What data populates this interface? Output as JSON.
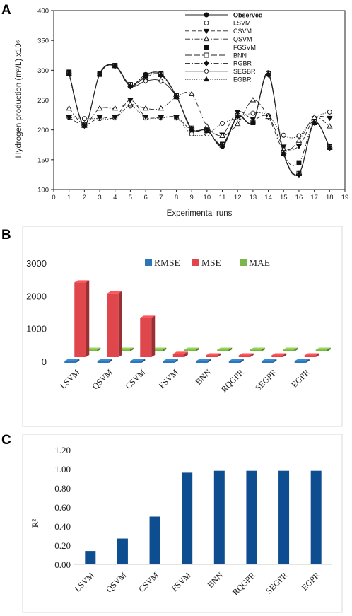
{
  "panels": {
    "a": {
      "letter": "A"
    },
    "b": {
      "letter": "B"
    },
    "c": {
      "letter": "C"
    }
  },
  "chart_data": [
    {
      "type": "line",
      "title": "",
      "xlabel": "Experimental runs",
      "ylabel": "Hydrogen production (m³/L) x10⁶",
      "xlim": [
        0,
        19
      ],
      "ylim": [
        100,
        400
      ],
      "x_ticks": [
        0,
        1,
        2,
        3,
        4,
        5,
        6,
        7,
        8,
        9,
        10,
        11,
        12,
        13,
        14,
        15,
        16,
        17,
        18,
        19
      ],
      "y_ticks": [
        100,
        150,
        200,
        250,
        300,
        350,
        400
      ],
      "x": [
        1,
        2,
        3,
        4,
        5,
        6,
        7,
        8,
        9,
        10,
        11,
        12,
        13,
        14,
        15,
        16,
        17,
        18
      ],
      "legend_position": "top-right",
      "series": [
        {
          "name": "Observed",
          "marker": "filled-circle",
          "dash": "solid",
          "values": [
            295,
            208,
            295,
            308,
            274,
            293,
            294,
            257,
            200,
            200,
            172,
            222,
            213,
            296,
            160,
            127,
            213,
            170
          ]
        },
        {
          "name": "LSVM",
          "marker": "open-circle",
          "dash": "dotted",
          "values": [
            221,
            219,
            219,
            220,
            240,
            220,
            220,
            220,
            193,
            193,
            211,
            220,
            228,
            224,
            191,
            190,
            220,
            230
          ]
        },
        {
          "name": "CSVM",
          "marker": "filled-triangle-down",
          "dash": "dashed",
          "values": [
            221,
            208,
            221,
            221,
            250,
            222,
            221,
            221,
            200,
            200,
            192,
            230,
            218,
            222,
            172,
            173,
            219,
            220
          ]
        },
        {
          "name": "QSVM",
          "marker": "open-triangle-up",
          "dash": "dashdot",
          "values": [
            236,
            210,
            236,
            236,
            243,
            236,
            236,
            255,
            260,
            206,
            190,
            210,
            250,
            222,
            167,
            182,
            221,
            206
          ]
        },
        {
          "name": "FGSVM",
          "marker": "filled-square",
          "dash": "dashdotdot",
          "values": [
            297,
            208,
            294,
            308,
            276,
            292,
            294,
            257,
            202,
            200,
            176,
            224,
            212,
            294,
            162,
            145,
            212,
            172
          ]
        },
        {
          "name": "BNN",
          "marker": "open-square",
          "dash": "longdash",
          "values": [
            294,
            208,
            293,
            308,
            275,
            288,
            293,
            257,
            203,
            199,
            175,
            224,
            213,
            294,
            162,
            127,
            213,
            171
          ]
        },
        {
          "name": "RGBR",
          "marker": "filled-diamond",
          "dash": "dashdot",
          "values": [
            294,
            207,
            294,
            307,
            273,
            290,
            292,
            256,
            202,
            199,
            174,
            223,
            213,
            293,
            160,
            125,
            212,
            170
          ]
        },
        {
          "name": "SEGBR",
          "marker": "open-diamond",
          "dash": "solid",
          "values": [
            294,
            207,
            294,
            307,
            273,
            282,
            282,
            256,
            202,
            199,
            174,
            223,
            213,
            293,
            160,
            126,
            212,
            170
          ]
        },
        {
          "name": "EGBR",
          "marker": "filled-triangle-up",
          "dash": "dotted",
          "values": [
            294,
            207,
            294,
            307,
            273,
            290,
            292,
            256,
            202,
            199,
            174,
            223,
            213,
            293,
            160,
            126,
            212,
            170
          ]
        }
      ]
    },
    {
      "type": "bar",
      "title": "",
      "xlabel": "",
      "ylabel": "",
      "ylim": [
        0,
        3000
      ],
      "y_ticks": [
        0,
        1000,
        2000,
        3000
      ],
      "categories": [
        "LSVM",
        "QSVM",
        "CSVM",
        "FSVM",
        "BNN",
        "RQGPR",
        "SEGPR",
        "EGPR"
      ],
      "legend_position": "top",
      "series": [
        {
          "name": "RMSE",
          "color": "#2e75b6",
          "values": [
            48,
            45,
            40,
            10,
            4,
            4,
            4,
            4
          ]
        },
        {
          "name": "MSE",
          "color": "#e0474c",
          "values": [
            2280,
            1950,
            1200,
            100,
            15,
            15,
            15,
            15
          ]
        },
        {
          "name": "MAE",
          "color": "#7ab648",
          "values": [
            40,
            38,
            32,
            8,
            3,
            3,
            3,
            3
          ]
        }
      ]
    },
    {
      "type": "bar",
      "title": "",
      "xlabel": "",
      "ylabel": "R²",
      "ylim": [
        0,
        1.2
      ],
      "y_ticks": [
        "0.00",
        "0.20",
        "0.40",
        "0.60",
        "0.80",
        "1.00",
        "1.20"
      ],
      "categories": [
        "LSVM",
        "QSVM",
        "CSVM",
        "FSVM",
        "BNN",
        "RQGPR",
        "SEGPR",
        "EGPR"
      ],
      "series": [
        {
          "name": "",
          "color": "#0e4d8f",
          "values": [
            0.14,
            0.27,
            0.5,
            0.96,
            0.98,
            0.98,
            0.98,
            0.98
          ]
        }
      ]
    }
  ]
}
